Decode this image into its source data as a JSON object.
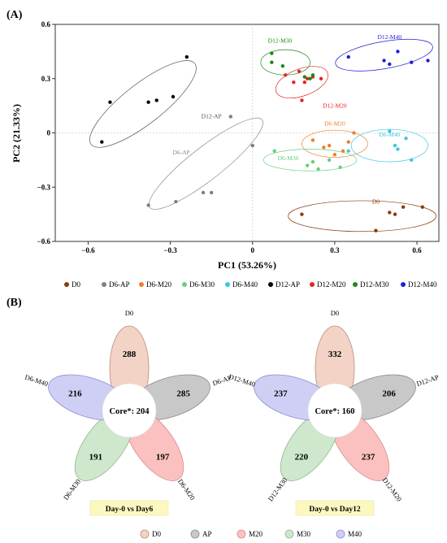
{
  "panel_a": {
    "label": "(A)",
    "chart_data": {
      "type": "scatter",
      "xlabel": "PC1 (53.26%)",
      "ylabel": "PC2 (21.33%)",
      "xlim": [
        -0.72,
        0.68
      ],
      "ylim": [
        -0.6,
        0.6
      ],
      "x_ticks": [
        -0.6,
        -0.3,
        0,
        0.3,
        0.6
      ],
      "x_tick_labels": [
        "−0.6",
        "−0.3",
        "0",
        "0.3",
        "0.6"
      ],
      "y_ticks": [
        -0.6,
        -0.3,
        0,
        0.3,
        0.6
      ],
      "y_tick_labels": [
        "−0.6",
        "−0.3",
        "0",
        "0.3",
        "0.6"
      ],
      "grid": false,
      "legend_position": "bottom",
      "series": [
        {
          "name": "D0",
          "color": "#8B3A0E",
          "points": [
            [
              0.18,
              -0.45
            ],
            [
              0.45,
              -0.54
            ],
            [
              0.5,
              -0.44
            ],
            [
              0.52,
              -0.45
            ],
            [
              0.55,
              -0.41
            ],
            [
              0.62,
              -0.41
            ]
          ]
        },
        {
          "name": "D6-AP",
          "color": "#7f7f7f",
          "points": [
            [
              -0.38,
              -0.4
            ],
            [
              -0.28,
              -0.38
            ],
            [
              -0.18,
              -0.33
            ],
            [
              -0.15,
              -0.33
            ],
            [
              -0.08,
              0.09
            ],
            [
              0,
              -0.07
            ]
          ]
        },
        {
          "name": "D6-M20",
          "color": "#f07f2a",
          "points": [
            [
              0.22,
              -0.04
            ],
            [
              0.26,
              -0.08
            ],
            [
              0.28,
              -0.07
            ],
            [
              0.3,
              -0.12
            ],
            [
              0.33,
              -0.1
            ],
            [
              0.35,
              -0.05
            ],
            [
              0.37,
              0.0
            ]
          ]
        },
        {
          "name": "D6-M30",
          "color": "#66d07a",
          "points": [
            [
              0.08,
              -0.1
            ],
            [
              0.2,
              -0.18
            ],
            [
              0.22,
              -0.16
            ],
            [
              0.24,
              -0.2
            ],
            [
              0.28,
              -0.15
            ],
            [
              0.32,
              -0.19
            ]
          ]
        },
        {
          "name": "D6-M40",
          "color": "#3fc6e6",
          "points": [
            [
              0.35,
              -0.1
            ],
            [
              0.5,
              0.01
            ],
            [
              0.52,
              -0.07
            ],
            [
              0.53,
              -0.09
            ],
            [
              0.56,
              -0.03
            ],
            [
              0.58,
              -0.15
            ]
          ]
        },
        {
          "name": "D12-AP",
          "color": "#000000",
          "points": [
            [
              -0.55,
              -0.05
            ],
            [
              -0.52,
              0.17
            ],
            [
              -0.38,
              0.17
            ],
            [
              -0.35,
              0.18
            ],
            [
              -0.29,
              0.2
            ],
            [
              -0.24,
              0.42
            ]
          ]
        },
        {
          "name": "D12-M20",
          "color": "#e42525",
          "points": [
            [
              0.12,
              0.32
            ],
            [
              0.15,
              0.28
            ],
            [
              0.17,
              0.34
            ],
            [
              0.19,
              0.28
            ],
            [
              0.2,
              0.3
            ],
            [
              0.22,
              0.31
            ],
            [
              0.25,
              0.3
            ],
            [
              0.18,
              0.18
            ]
          ]
        },
        {
          "name": "D12-M30",
          "color": "#1a8a1a",
          "points": [
            [
              0.07,
              0.44
            ],
            [
              0.07,
              0.39
            ],
            [
              0.11,
              0.37
            ],
            [
              0.19,
              0.31
            ],
            [
              0.21,
              0.3
            ],
            [
              0.22,
              0.32
            ]
          ]
        },
        {
          "name": "D12-M40",
          "color": "#1f1fd6",
          "points": [
            [
              0.35,
              0.42
            ],
            [
              0.48,
              0.4
            ],
            [
              0.5,
              0.38
            ],
            [
              0.53,
              0.45
            ],
            [
              0.58,
              0.39
            ],
            [
              0.64,
              0.4
            ]
          ]
        }
      ],
      "ellipses": [
        {
          "label": "D12-AP",
          "color": "#555555",
          "cx": -0.4,
          "cy": 0.16,
          "rx": 0.24,
          "ry": 0.11,
          "angle": -38
        },
        {
          "label": "D6-AP",
          "color": "#8a8a8a",
          "cx": -0.17,
          "cy": -0.17,
          "rx": 0.26,
          "ry": 0.09,
          "angle": -38
        },
        {
          "label": "D12-M30",
          "color": "#1a8a1a",
          "cx": 0.12,
          "cy": 0.39,
          "rx": 0.09,
          "ry": 0.07,
          "angle": 0
        },
        {
          "label": "D12-M20",
          "color": "#e42525",
          "cx": 0.18,
          "cy": 0.28,
          "rx": 0.1,
          "ry": 0.075,
          "angle": -20
        },
        {
          "label": "D12-M40",
          "color": "#1f1fd6",
          "cx": 0.48,
          "cy": 0.43,
          "rx": 0.18,
          "ry": 0.075,
          "angle": -10
        },
        {
          "label": "D6-M20",
          "color": "#f07f2a",
          "cx": 0.3,
          "cy": -0.06,
          "rx": 0.12,
          "ry": 0.075,
          "angle": 0
        },
        {
          "label": "D6-M30",
          "color": "#66d07a",
          "cx": 0.21,
          "cy": -0.15,
          "rx": 0.17,
          "ry": 0.06,
          "angle": 0
        },
        {
          "label": "D6-M40",
          "color": "#3fc6e6",
          "cx": 0.5,
          "cy": -0.07,
          "rx": 0.14,
          "ry": 0.09,
          "angle": 0
        },
        {
          "label": "D0",
          "color": "#8B3A0E",
          "cx": 0.4,
          "cy": -0.46,
          "rx": 0.27,
          "ry": 0.085,
          "angle": 0
        }
      ]
    },
    "legend": [
      {
        "name": "D0",
        "color": "#8B3A0E"
      },
      {
        "name": "D6-AP",
        "color": "#7f7f7f"
      },
      {
        "name": "D6-M20",
        "color": "#f07f2a"
      },
      {
        "name": "D6-M30",
        "color": "#66d07a"
      },
      {
        "name": "D6-M40",
        "color": "#3fc6e6"
      },
      {
        "name": "D12-AP",
        "color": "#000000"
      },
      {
        "name": "D12-M20",
        "color": "#e42525"
      },
      {
        "name": "D12-M30",
        "color": "#1a8a1a"
      },
      {
        "name": "D12-M40",
        "color": "#1f1fd6"
      }
    ]
  },
  "panel_b": {
    "label": "(B)",
    "venns": [
      {
        "core_label": "Core*: 204",
        "caption": "Day-0 vs Day6",
        "petals": [
          {
            "label": "D0",
            "value": 288,
            "key": "D0"
          },
          {
            "label": "D6-AP",
            "value": 285,
            "key": "AP"
          },
          {
            "label": "D6-M20",
            "value": 197,
            "key": "M20"
          },
          {
            "label": "D6-M30",
            "value": 191,
            "key": "M30"
          },
          {
            "label": "D6-M40",
            "value": 216,
            "key": "M40"
          }
        ]
      },
      {
        "core_label": "Core*: 160",
        "caption": "Day-0 vs Day12",
        "petals": [
          {
            "label": "D0",
            "value": 332,
            "key": "D0"
          },
          {
            "label": "D12-AP",
            "value": 206,
            "key": "AP"
          },
          {
            "label": "D12-M20",
            "value": 237,
            "key": "M20"
          },
          {
            "label": "D12-M30",
            "value": 220,
            "key": "M30"
          },
          {
            "label": "D12-M40",
            "value": 237,
            "key": "M40"
          }
        ]
      }
    ],
    "petal_colors": {
      "D0": {
        "fill": "#f2d3c6",
        "stroke": "#b98b78"
      },
      "AP": {
        "fill": "#c8c8c8",
        "stroke": "#888888"
      },
      "M20": {
        "fill": "#fbc1c1",
        "stroke": "#d88a8a"
      },
      "M30": {
        "fill": "#cfe7cd",
        "stroke": "#8db78a"
      },
      "M40": {
        "fill": "#cfcff5",
        "stroke": "#8c8cd0"
      }
    },
    "caption_bg": "#fdf8c0",
    "legend": [
      "D0",
      "AP",
      "M20",
      "M30",
      "M40"
    ]
  }
}
